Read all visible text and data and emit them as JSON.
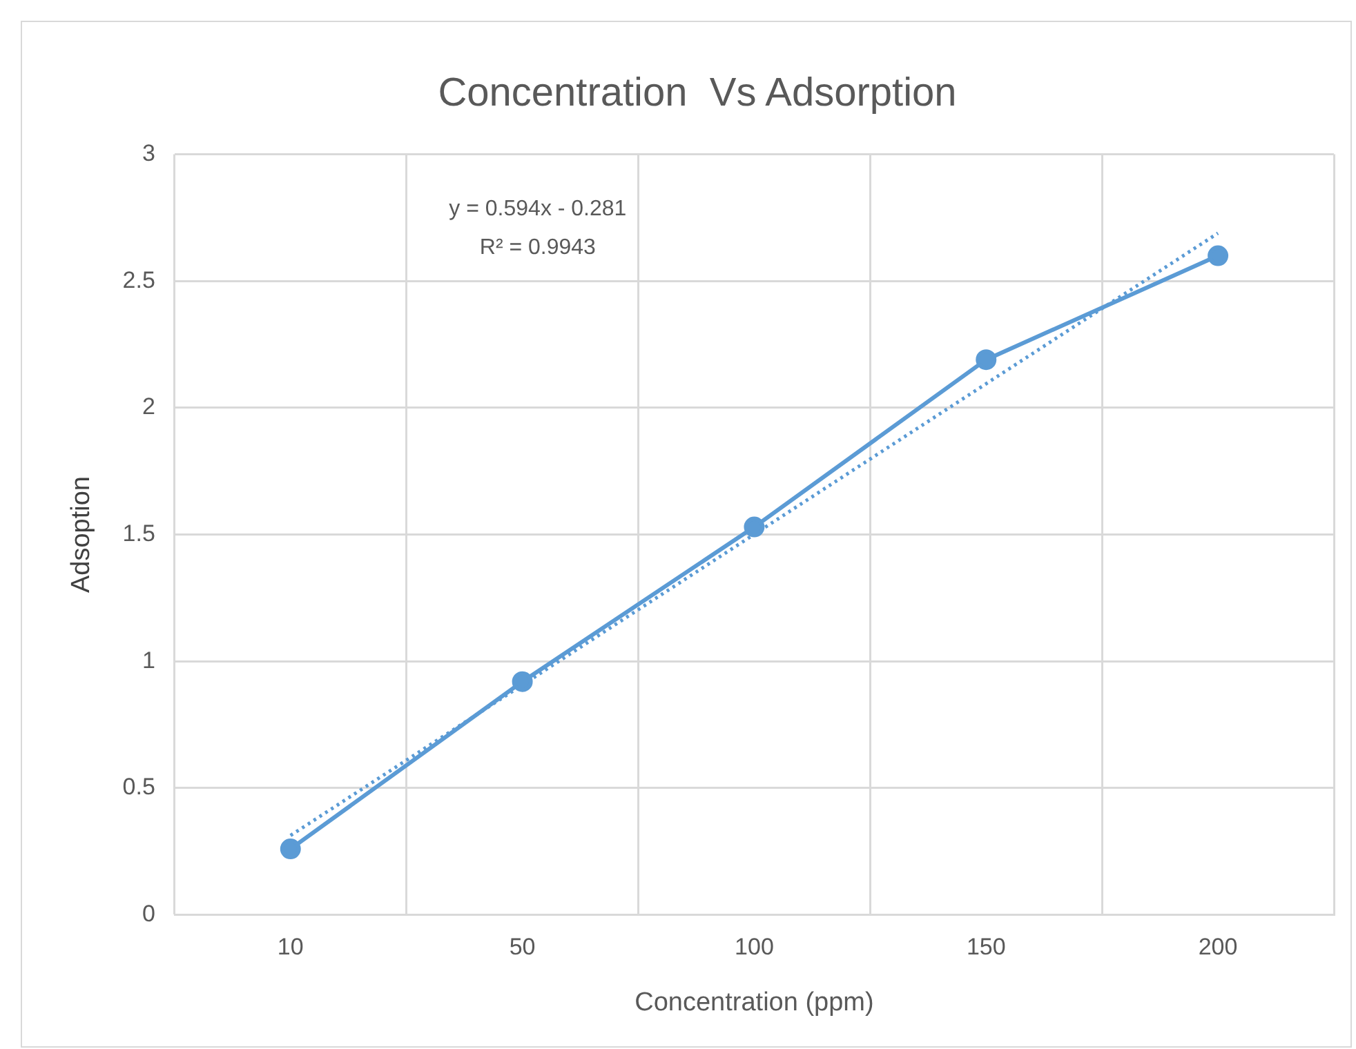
{
  "chart_data": {
    "type": "line",
    "title": "Concentration  Vs Adsorption",
    "xlabel": "Concentration (ppm)",
    "ylabel": "Adsoption",
    "categories": [
      "10",
      "50",
      "100",
      "150",
      "200"
    ],
    "series": [
      {
        "type": "line",
        "color": "#5b9bd5",
        "values": [
          0.26,
          0.92,
          1.53,
          2.19,
          2.6
        ],
        "marker": "circle",
        "line_style": "solid"
      },
      {
        "type": "line",
        "color": "#5b9bd5",
        "values": [
          0.313,
          0.907,
          1.501,
          2.095,
          2.689
        ],
        "marker": "none",
        "line_style": "dotted"
      }
    ],
    "ylim": [
      0,
      3
    ],
    "yticks": [
      0,
      0.5,
      1,
      1.5,
      2,
      2.5,
      3
    ],
    "grid": true,
    "annotations": [
      "y = 0.594x - 0.281",
      "R² = 0.9943"
    ]
  }
}
